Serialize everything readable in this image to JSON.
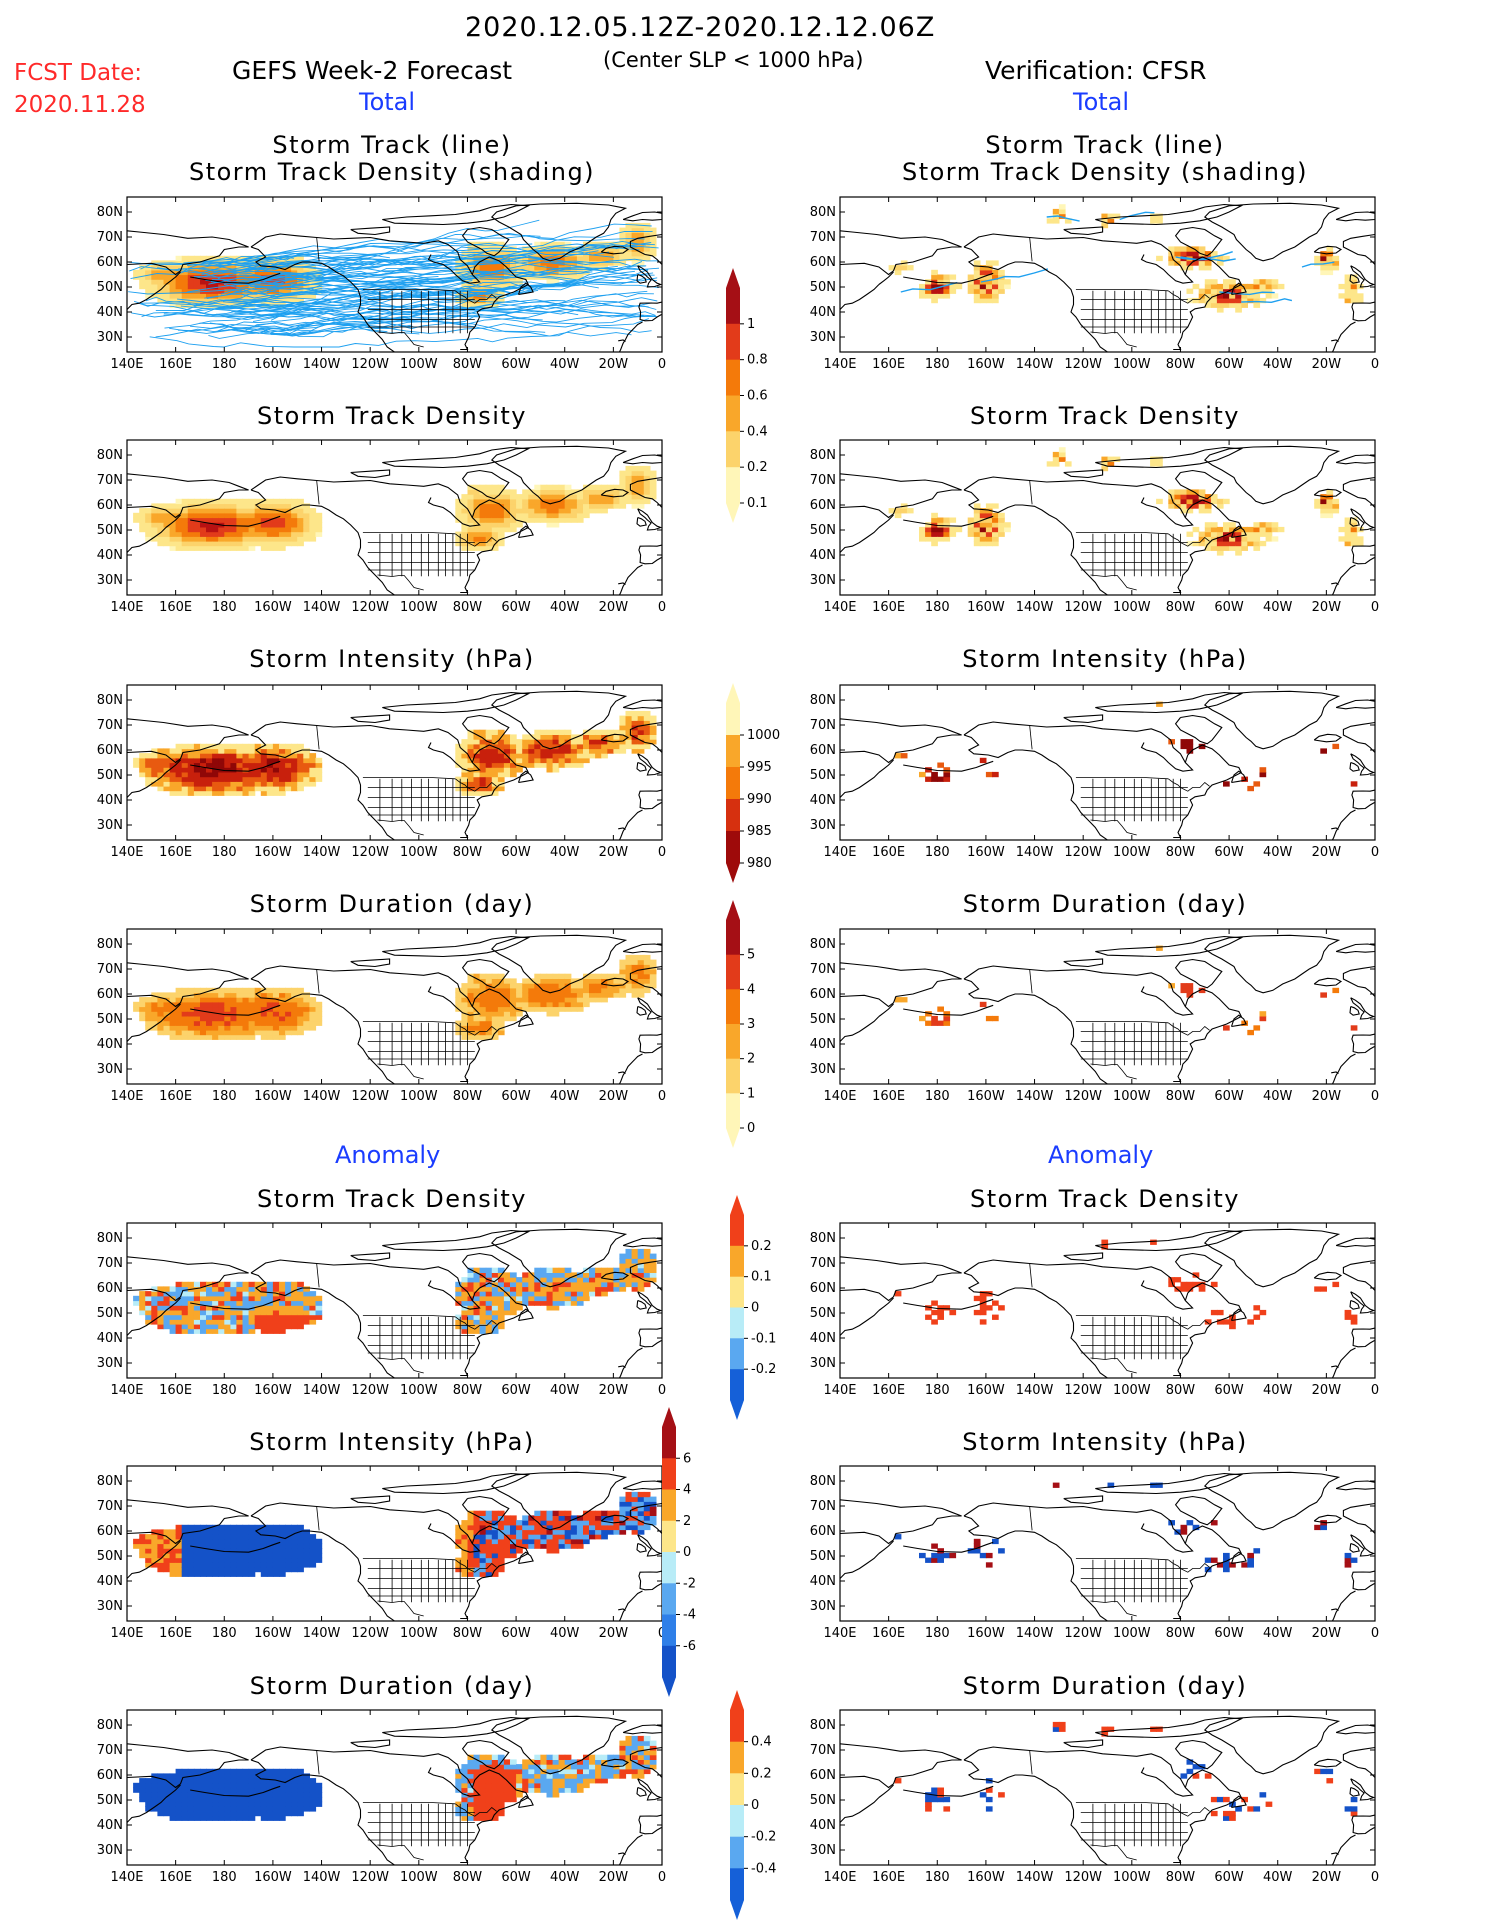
{
  "header": {
    "date_range": "2020.12.05.12Z-2020.12.12.06Z",
    "condition": "(Center SLP < 1000 hPa)",
    "fcst_label": "FCST Date:",
    "fcst_date": "2020.11.28",
    "left_title": "GEFS Week-2 Forecast",
    "right_title": "Verification: CFSR",
    "total_label": "Total",
    "anomaly_label": "Anomaly"
  },
  "panel_titles": {
    "track_line": "Storm Track (line)",
    "track_shading": "Storm Track Density (shading)",
    "density": "Storm Track Density",
    "intensity": "Storm Intensity (hPa)",
    "duration": "Storm Duration (day)"
  },
  "axes": {
    "lat_labels": [
      "80N",
      "70N",
      "60N",
      "50N",
      "40N",
      "30N"
    ],
    "lon_labels": [
      "140E",
      "160E",
      "180",
      "160W",
      "140W",
      "120W",
      "100W",
      "80W",
      "60W",
      "40W",
      "20W",
      "0"
    ]
  },
  "colorbars": {
    "density_total": {
      "labels": [
        "1",
        "0.8",
        "0.6",
        "0.4",
        "0.2",
        "0.1"
      ],
      "colors": [
        "#a50f15",
        "#e23b1a",
        "#f47a0a",
        "#f9a72a",
        "#fcd36b",
        "#fff6b8"
      ]
    },
    "intensity_total": {
      "labels": [
        "1000",
        "995",
        "990",
        "985",
        "980"
      ],
      "colors": [
        "#fff6b8",
        "#f9a72a",
        "#f47a0a",
        "#d6300f",
        "#9e0a0a"
      ]
    },
    "duration_total": {
      "labels": [
        "5",
        "4",
        "3",
        "2",
        "1",
        "0"
      ],
      "colors": [
        "#a50f15",
        "#e23b1a",
        "#f47a0a",
        "#f9a72a",
        "#fcd36b",
        "#fff6b8"
      ]
    },
    "density_anom": {
      "labels": [
        "0.2",
        "0.1",
        "0",
        "-0.1",
        "-0.2"
      ],
      "colors": [
        "#f0401a",
        "#f9a72a",
        "#fde68a",
        "#b8ecf7",
        "#5aa8f0",
        "#1560d8"
      ]
    },
    "intensity_anom": {
      "labels": [
        "6",
        "4",
        "2",
        "0",
        "-2",
        "-4",
        "-6"
      ],
      "colors": [
        "#a50f15",
        "#f0401a",
        "#f9a72a",
        "#fde68a",
        "#b8ecf7",
        "#5aa8f0",
        "#2f7fe8",
        "#1452c8"
      ]
    },
    "duration_anom": {
      "labels": [
        "0.4",
        "0.2",
        "0",
        "-0.2",
        "-0.4"
      ],
      "colors": [
        "#f0401a",
        "#f9a72a",
        "#fde68a",
        "#b8ecf7",
        "#5aa8f0",
        "#1560d8"
      ]
    }
  },
  "colors": {
    "track_line": "#1ea0f0",
    "coast": "#000000"
  }
}
